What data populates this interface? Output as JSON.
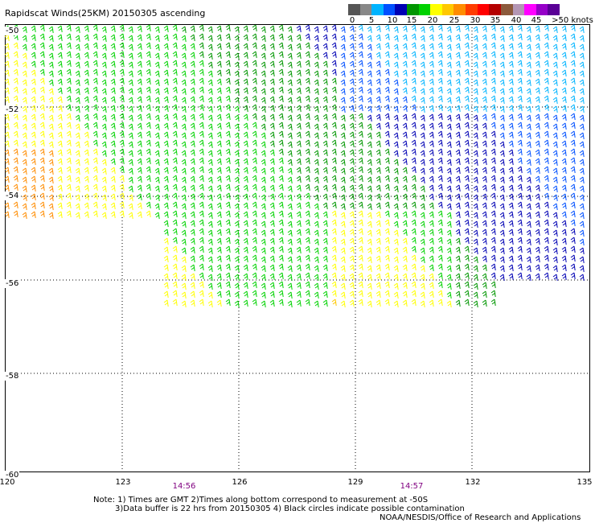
{
  "title": "Rapidscat Winds(25KM) 20150305 ascending",
  "legend": {
    "colors": [
      "#555555",
      "#888888",
      "#00b4ff",
      "#0050ff",
      "#0000b4",
      "#009600",
      "#00d200",
      "#ffff00",
      "#ffc800",
      "#ff8c00",
      "#ff3c00",
      "#ff0000",
      "#b40000",
      "#8c5a3c",
      "#b496b4",
      "#ff00ff",
      "#9600c8",
      "#5a0096"
    ],
    "ticks": [
      "0",
      "5",
      "10",
      "15",
      "20",
      "25",
      "30",
      "35",
      "40",
      "45",
      ">50 knots"
    ]
  },
  "lat_labels": [
    "-50",
    "-52",
    "-54",
    "-56",
    "-58",
    "-60"
  ],
  "lon_labels": [
    "120",
    "123",
    "126",
    "129",
    "132",
    "135"
  ],
  "time_labels": [
    "14:56",
    "14:57"
  ],
  "notes": {
    "line1": "Note: 1) Times are GMT 2)Times along bottom correspond to measurement at -50S",
    "line2": "3)Data buffer is 22 hrs from 20150305 4) Black circles indicate possible contamination",
    "credit": "NOAA/NESDIS/Office of Research and Applications"
  }
}
